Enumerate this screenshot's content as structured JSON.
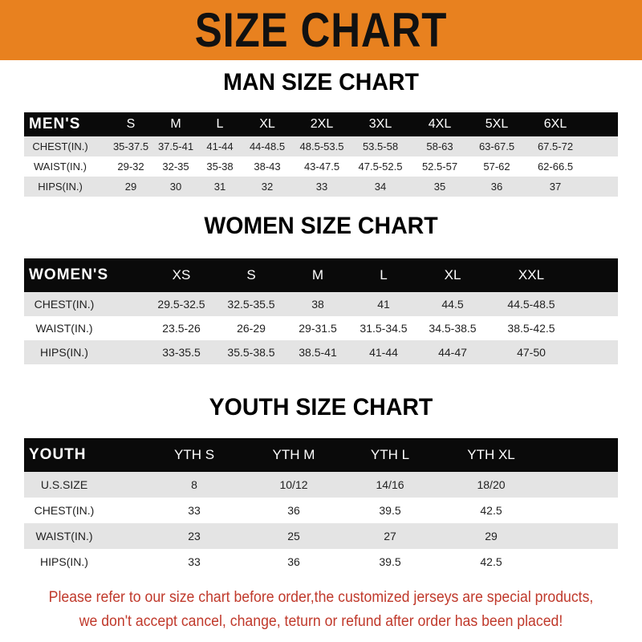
{
  "banner_title": "SIZE CHART",
  "colors": {
    "banner": "#e8811f",
    "header_row": "#0a0a0a",
    "stripe": "#e4e4e4",
    "footer_text": "#c0392b"
  },
  "men": {
    "title": "MAN SIZE CHART",
    "header": [
      "MEN'S",
      "S",
      "M",
      "L",
      "XL",
      "2XL",
      "3XL",
      "4XL",
      "5XL",
      "6XL"
    ],
    "rows": [
      [
        "CHEST(IN.)",
        "35-37.5",
        "37.5-41",
        "41-44",
        "44-48.5",
        "48.5-53.5",
        "53.5-58",
        "58-63",
        "63-67.5",
        "67.5-72"
      ],
      [
        "WAIST(IN.)",
        "29-32",
        "32-35",
        "35-38",
        "38-43",
        "43-47.5",
        "47.5-52.5",
        "52.5-57",
        "57-62",
        "62-66.5"
      ],
      [
        "HIPS(IN.)",
        "29",
        "30",
        "31",
        "32",
        "33",
        "34",
        "35",
        "36",
        "37"
      ]
    ]
  },
  "women": {
    "title": "WOMEN SIZE CHART",
    "header": [
      "WOMEN'S",
      "XS",
      "S",
      "M",
      "L",
      "XL",
      "XXL"
    ],
    "rows": [
      [
        "CHEST(IN.)",
        "29.5-32.5",
        "32.5-35.5",
        "38",
        "41",
        "44.5",
        "44.5-48.5"
      ],
      [
        "WAIST(IN.)",
        "23.5-26",
        "26-29",
        "29-31.5",
        "31.5-34.5",
        "34.5-38.5",
        "38.5-42.5"
      ],
      [
        "HIPS(IN.)",
        "33-35.5",
        "35.5-38.5",
        "38.5-41",
        "41-44",
        "44-47",
        "47-50"
      ]
    ]
  },
  "youth": {
    "title": "YOUTH SIZE CHART",
    "header": [
      "YOUTH",
      "YTH S",
      "YTH M",
      "YTH L",
      "YTH XL"
    ],
    "rows": [
      [
        "U.S.SIZE",
        "8",
        "10/12",
        "14/16",
        "18/20"
      ],
      [
        "CHEST(IN.)",
        "33",
        "36",
        "39.5",
        "42.5"
      ],
      [
        "WAIST(IN.)",
        "23",
        "25",
        "27",
        "29"
      ],
      [
        "HIPS(IN.)",
        "33",
        "36",
        "39.5",
        "42.5"
      ]
    ]
  },
  "footer": {
    "line1": "Please refer to our size chart before order,the customized jerseys are special products,",
    "line2": "we don't accept cancel, change, teturn or refund after order has been placed!"
  }
}
